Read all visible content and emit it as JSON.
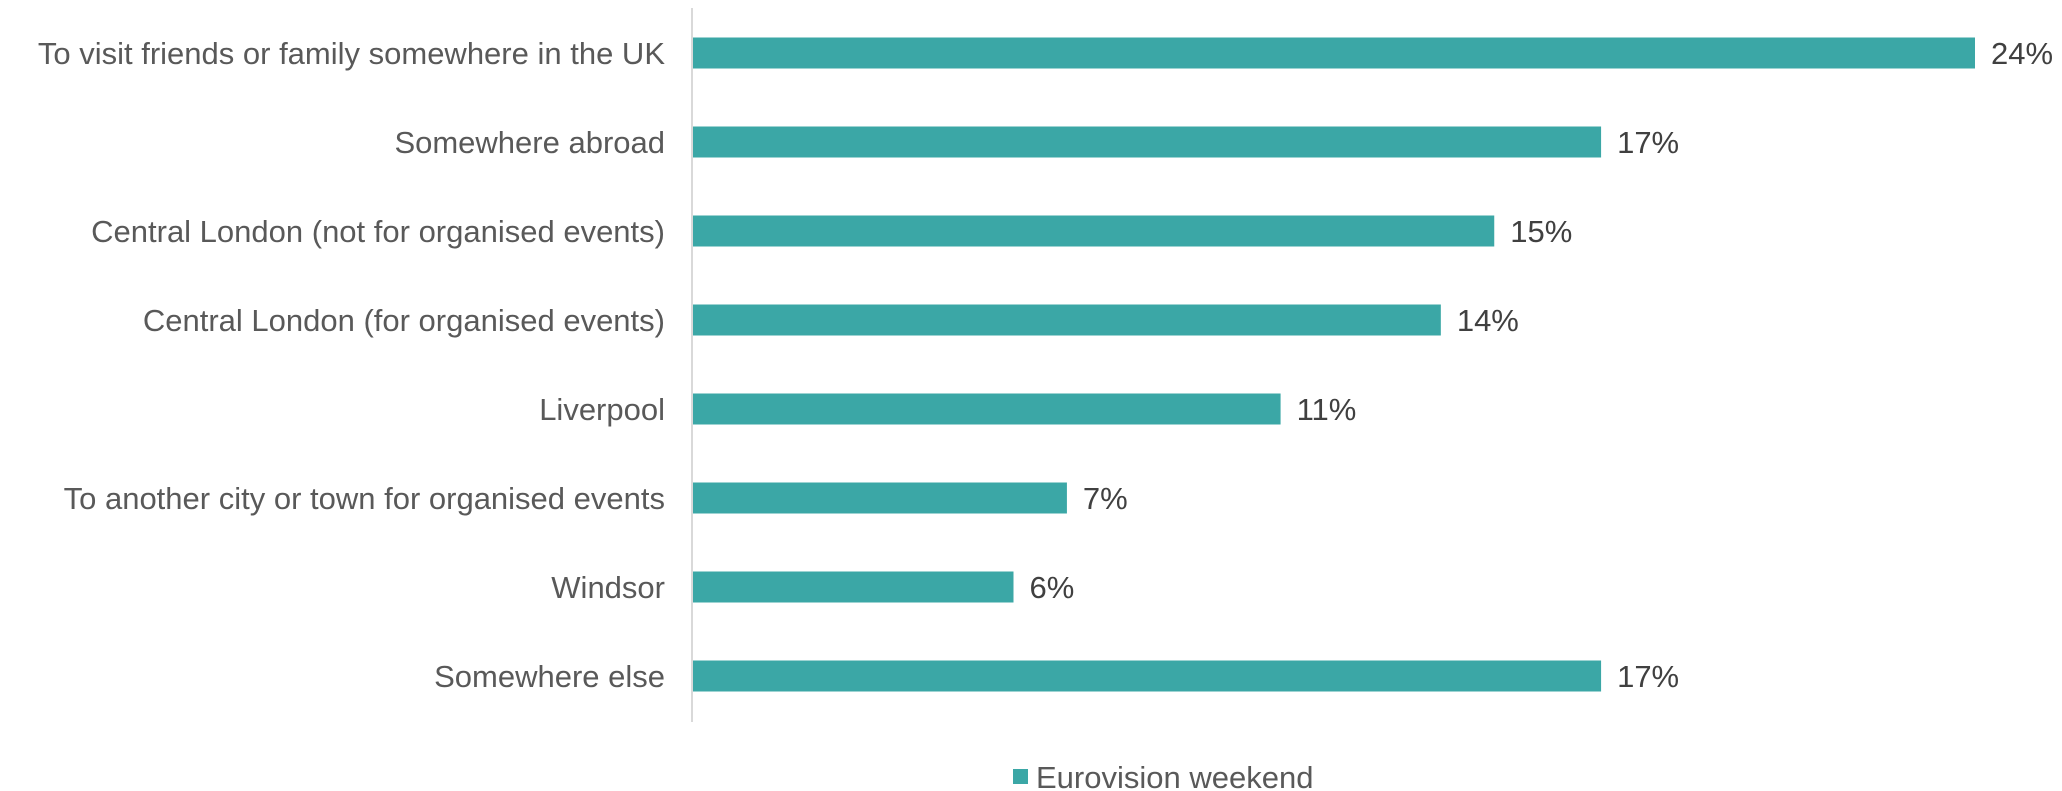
{
  "chart_data": {
    "type": "bar",
    "orientation": "horizontal",
    "categories": [
      "To visit friends or family somewhere in the UK",
      "Somewhere abroad",
      "Central London (not for organised events)",
      "Central London (for organised events)",
      "Liverpool",
      "To another city or town for organised events",
      "Windsor",
      "Somewhere else"
    ],
    "series": [
      {
        "name": "Eurovision weekend",
        "values": [
          24,
          17,
          15,
          14,
          11,
          7,
          6,
          17
        ],
        "labels": [
          "24%",
          "17%",
          "15%",
          "14%",
          "11%",
          "7%",
          "6%",
          "17%"
        ]
      }
    ],
    "xlim": [
      0,
      24
    ],
    "grid": false,
    "legend": "bottom",
    "colors": {
      "bar": "#3ba7a6",
      "axis": "#d9d9d9"
    }
  }
}
